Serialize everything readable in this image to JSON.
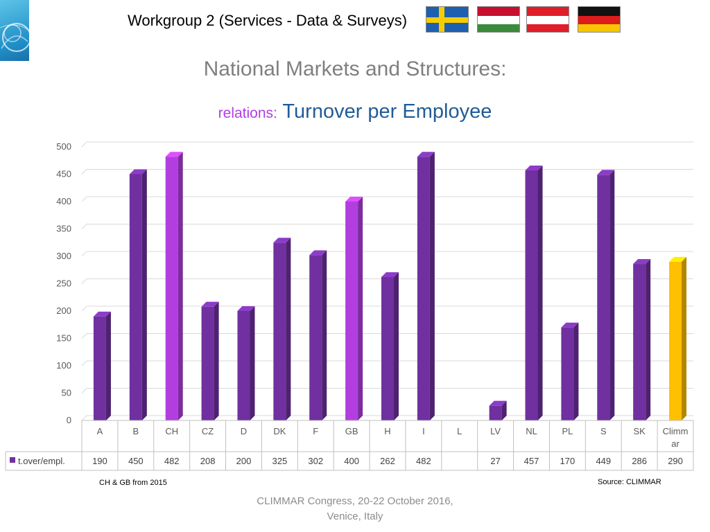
{
  "header": {
    "title": "Workgroup 2 (Services - Data & Surveys)",
    "flags": [
      "sweden-flag",
      "hungary-flag",
      "austria-flag",
      "germany-flag"
    ]
  },
  "slide": {
    "title": "National Markets and Structures:",
    "subtitle_prefix": "relations:",
    "subtitle_main": "Turnover per Employee",
    "note_left": "CH & GB from 2015",
    "note_right": "Source: CLIMMAR",
    "footer_line1": "CLIMMAR Congress, 20-22 October 2016,",
    "footer_line2": "Venice, Italy"
  },
  "colors": {
    "bar_default": "#7030a0",
    "bar_highlight": "#b23ee0",
    "bar_climmar": "#ffc000",
    "grid": "#d9d9d9",
    "title_grey": "#7f7f7f",
    "subtitle_blue": "#1f5b99",
    "subtitle_purple": "#b23ee0"
  },
  "chart_data": {
    "type": "bar",
    "categories": [
      "A",
      "B",
      "CH",
      "CZ",
      "D",
      "DK",
      "F",
      "GB",
      "H",
      "I",
      "L",
      "LV",
      "NL",
      "PL",
      "S",
      "SK",
      "Climmar"
    ],
    "series": [
      {
        "name": "t.over/empl.",
        "values": [
          190,
          450,
          482,
          208,
          200,
          325,
          302,
          400,
          262,
          482,
          null,
          27,
          457,
          170,
          449,
          286,
          290
        ],
        "labels": [
          "190",
          "450",
          "482",
          "208",
          "200",
          "325",
          "302",
          "400",
          "262",
          "482",
          "",
          "27",
          "457",
          "170",
          "449",
          "286",
          "290"
        ]
      }
    ],
    "highlight_categories": [
      "CH",
      "GB"
    ],
    "special_category": "Climmar",
    "ylim": [
      0,
      500
    ],
    "yticks": [
      0,
      50,
      100,
      150,
      200,
      250,
      300,
      350,
      400,
      450,
      500
    ],
    "grid": true,
    "data_table": true,
    "style": "3d-bar"
  }
}
